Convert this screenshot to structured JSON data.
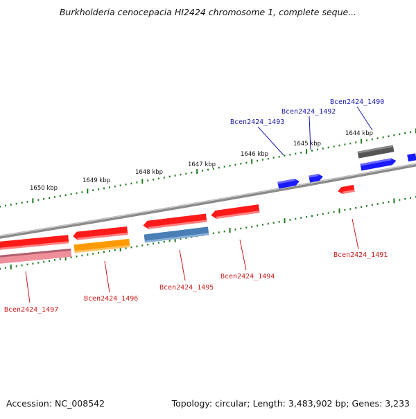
{
  "title": "Burkholderia cenocepacia HI2424 chromosome 1, complete seque...",
  "footer": {
    "accession": "Accession: NC_008542",
    "summary": "Topology: circular; Length: 3,483,902 bp; Genes: 3,233"
  },
  "colors": {
    "backbone": "#8a8a8a",
    "tick": "#1e7a1e",
    "label_forward": "#1a1aa8",
    "label_reverse": "#cc1a1a",
    "red": "#ff1a1a",
    "blue": "#1a1aff",
    "dark_gray": "#555555",
    "orange": "#ff9a00",
    "steel_blue": "#4a7fb5",
    "pink": "#f0909a"
  },
  "ruler_labels": [
    "1650 kbp",
    "1649 kbp",
    "1648 kbp",
    "1647 kbp",
    "1646 kbp",
    "1645 kbp",
    "1644 kbp"
  ],
  "genes": [
    {
      "name": "Bcen2424_1490",
      "strand": "+",
      "color_key": "dark_gray"
    },
    {
      "name": "Bcen2424_1491",
      "strand": "-",
      "color_key": "red"
    },
    {
      "name": "Bcen2424_1492",
      "strand": "+",
      "color_key": "blue"
    },
    {
      "name": "Bcen2424_1493",
      "strand": "+",
      "color_key": "blue"
    },
    {
      "name": "Bcen2424_1494",
      "strand": "-",
      "color_key": "red"
    },
    {
      "name": "Bcen2424_1495",
      "strand": "-",
      "color_key": "red"
    },
    {
      "name": "Bcen2424_1496",
      "strand": "-",
      "color_key": "red"
    },
    {
      "name": "Bcen2424_1497",
      "strand": "-",
      "color_key": "red"
    }
  ],
  "unlabeled_features": [
    {
      "strand": "+",
      "color_key": "blue"
    },
    {
      "strand": "-",
      "color_key": "red"
    },
    {
      "strand": "-",
      "color_key": "red"
    },
    {
      "strand": "-",
      "color_key": "steel_blue"
    },
    {
      "strand": "-",
      "color_key": "orange"
    },
    {
      "strand": "-",
      "color_key": "pink"
    }
  ]
}
